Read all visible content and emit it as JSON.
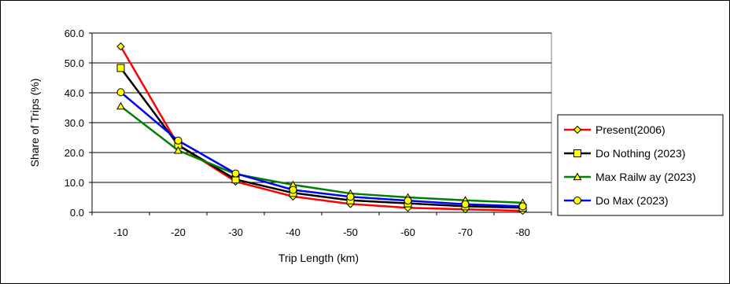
{
  "chart_data": {
    "type": "line",
    "title": "",
    "xlabel": "Trip Length (km)",
    "ylabel": "Share of Trips (%)",
    "categories": [
      "-10",
      "-20",
      "-30",
      "-40",
      "-50",
      "-60",
      "-70",
      "-80"
    ],
    "ylim": [
      0,
      60
    ],
    "yticks": [
      "0.0",
      "10.0",
      "20.0",
      "30.0",
      "40.0",
      "50.0",
      "60.0"
    ],
    "grid": true,
    "legend_position": "right",
    "series": [
      {
        "name": "Present(2006)",
        "color": "#ff0000",
        "marker": "diamond",
        "marker_fill": "#ffff00",
        "values": [
          55.5,
          22.5,
          10.3,
          5.3,
          2.8,
          1.5,
          1.0,
          0.5
        ]
      },
      {
        "name": "Do Nothing (2023)",
        "color": "#000000",
        "marker": "square",
        "marker_fill": "#ffff00",
        "values": [
          48.3,
          22.5,
          11.0,
          6.5,
          4.0,
          3.0,
          2.0,
          1.5
        ]
      },
      {
        "name": "Max Railw ay (2023)",
        "color": "#008000",
        "marker": "triangle",
        "marker_fill": "#ffff00",
        "values": [
          35.5,
          20.7,
          12.8,
          9.2,
          6.3,
          5.0,
          4.0,
          3.2
        ]
      },
      {
        "name": "Do Max (2023)",
        "color": "#0000ff",
        "marker": "circle",
        "marker_fill": "#ffff00",
        "values": [
          40.2,
          24.0,
          13.0,
          7.5,
          5.2,
          3.9,
          2.7,
          2.0
        ]
      }
    ]
  }
}
